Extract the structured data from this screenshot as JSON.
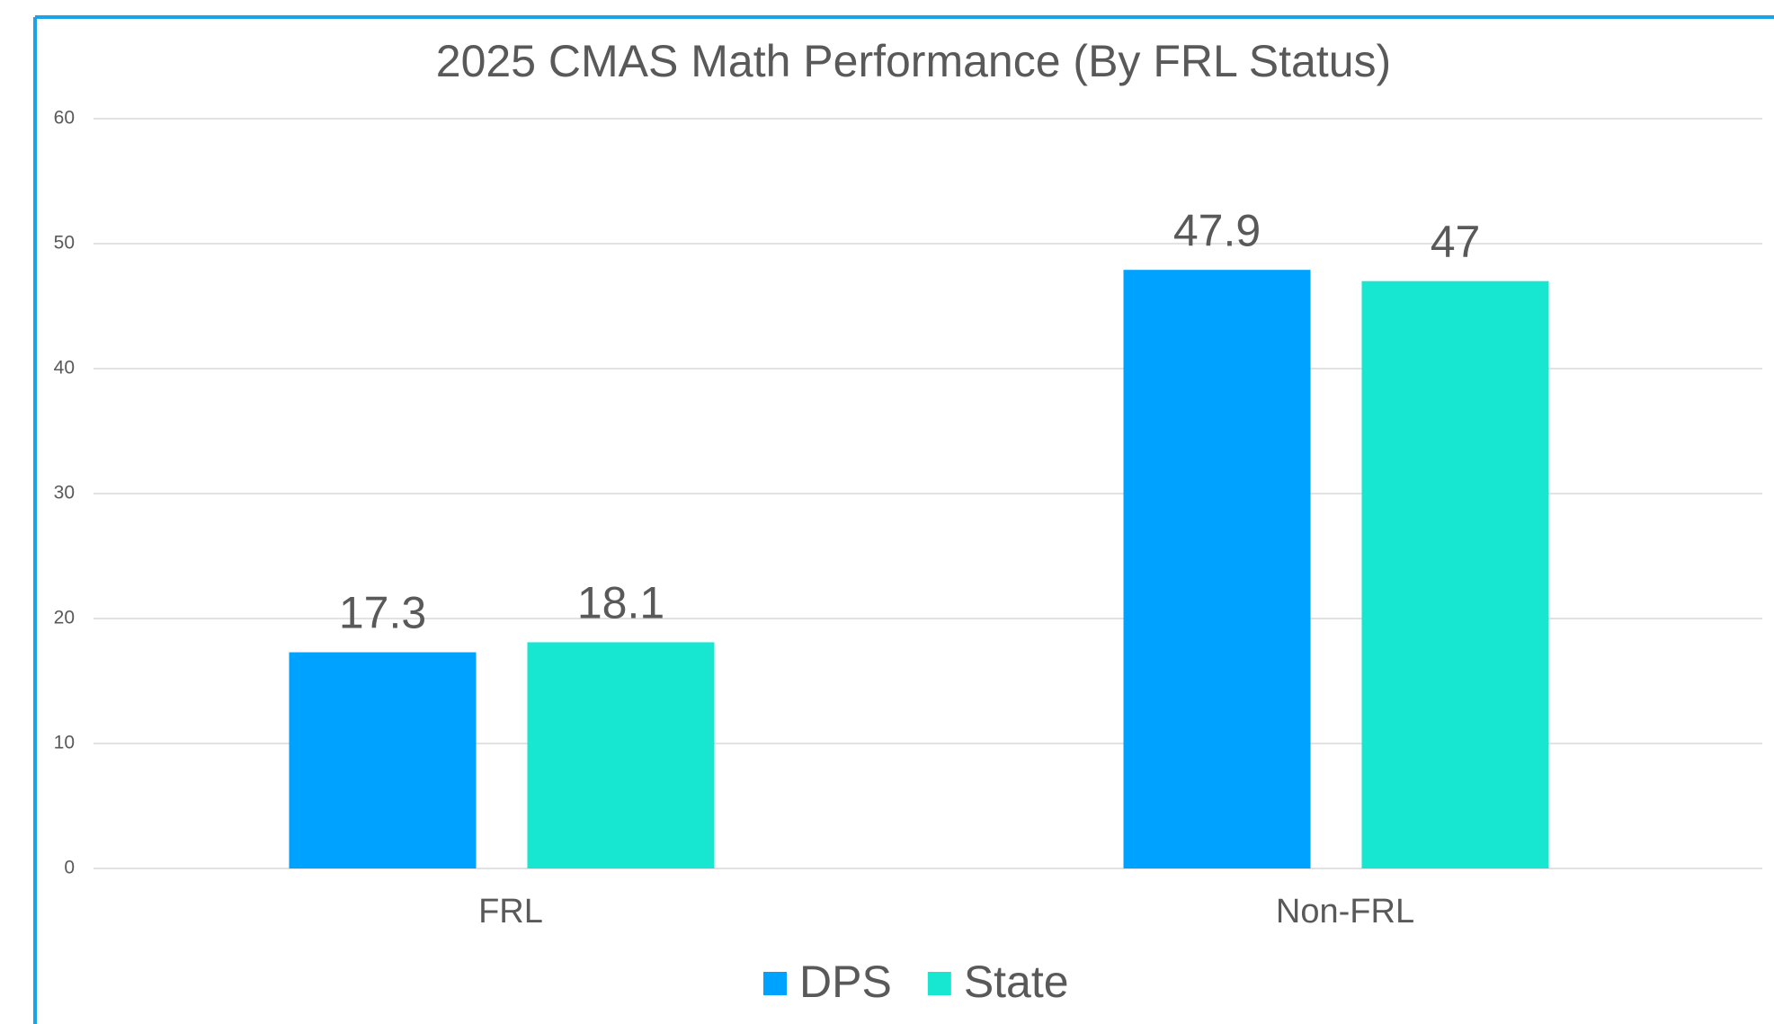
{
  "chart_data": {
    "type": "bar",
    "title": "2025 CMAS Math Performance (By FRL Status)",
    "categories": [
      "FRL",
      "Non-FRL"
    ],
    "series": [
      {
        "name": "DPS",
        "color": "#00a2ff",
        "values": [
          17.3,
          47.9
        ]
      },
      {
        "name": "State",
        "color": "#17e6d0",
        "values": [
          18.1,
          47
        ]
      }
    ],
    "ylim": [
      0,
      60
    ],
    "yticks": [
      0,
      10,
      20,
      30,
      40,
      50,
      60
    ],
    "grid": true,
    "legend": "bottom"
  }
}
